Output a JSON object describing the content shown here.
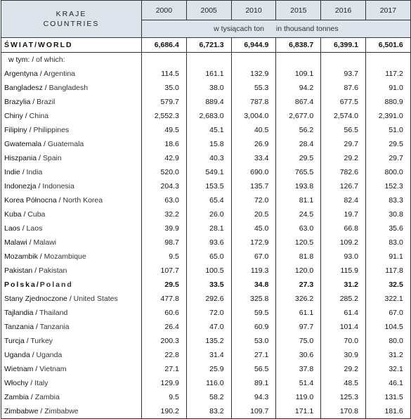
{
  "header": {
    "country_pl": "KRAJE",
    "country_en": "COUNTRIES",
    "years": [
      "2000",
      "2005",
      "2010",
      "2015",
      "2016",
      "2017"
    ],
    "unit_pl": "w tysiącach ton",
    "unit_en": "in thousand tonnes"
  },
  "world": {
    "pl": "ŚWIAT",
    "en": "WORLD",
    "values": [
      "6,686.4",
      "6,721.3",
      "6,944.9",
      "6,838.7",
      "6,399.1",
      "6,501.6"
    ]
  },
  "of_which": {
    "pl": "w tym:",
    "en": "of which:"
  },
  "rows": [
    {
      "pl": "Argentyna",
      "en": "Argentina",
      "values": [
        "114.5",
        "161.1",
        "132.9",
        "109.1",
        "93.7",
        "117.2"
      ]
    },
    {
      "pl": "Bangladesz",
      "en": "Bangladesh",
      "values": [
        "35.0",
        "38.0",
        "55.3",
        "94.2",
        "87.6",
        "91.0"
      ]
    },
    {
      "pl": "Brazylia",
      "en": "Brazil",
      "values": [
        "579.7",
        "889.4",
        "787.8",
        "867.4",
        "677.5",
        "880.9"
      ]
    },
    {
      "pl": "Chiny",
      "en": "China",
      "values": [
        "2,552.3",
        "2,683.0",
        "3,004.0",
        "2,677.0",
        "2,574.0",
        "2,391.0"
      ]
    },
    {
      "pl": "Filipiny",
      "en": "Philippines",
      "values": [
        "49.5",
        "45.1",
        "40.5",
        "56.2",
        "56.5",
        "51.0"
      ]
    },
    {
      "pl": "Gwatemala",
      "en": "Guatemala",
      "values": [
        "18.6",
        "15.8",
        "26.9",
        "28.4",
        "29.7",
        "29.5"
      ]
    },
    {
      "pl": "Hiszpania",
      "en": "Spain",
      "values": [
        "42.9",
        "40.3",
        "33.4",
        "29.5",
        "29.2",
        "29.7"
      ]
    },
    {
      "pl": "Indie",
      "en": "India",
      "values": [
        "520.0",
        "549.1",
        "690.0",
        "765.5",
        "782.6",
        "800.0"
      ]
    },
    {
      "pl": "Indonezja",
      "en": "Indonesia",
      "values": [
        "204.3",
        "153.5",
        "135.7",
        "193.8",
        "126.7",
        "152.3"
      ]
    },
    {
      "pl": "Korea Północna",
      "en": "North Korea",
      "values": [
        "63.0",
        "65.4",
        "72.0",
        "81.1",
        "82.4",
        "83.3"
      ]
    },
    {
      "pl": "Kuba",
      "en": "Cuba",
      "values": [
        "32.2",
        "26.0",
        "20.5",
        "24.5",
        "19.7",
        "30.8"
      ]
    },
    {
      "pl": "Laos",
      "en": "Laos",
      "values": [
        "39.9",
        "28.1",
        "45.0",
        "63.0",
        "66.8",
        "35.6"
      ]
    },
    {
      "pl": "Malawi",
      "en": "Malawi",
      "values": [
        "98.7",
        "93.6",
        "172.9",
        "120.5",
        "109.2",
        "83.0"
      ]
    },
    {
      "pl": "Mozambik",
      "en": "Mozambique",
      "values": [
        "9.5",
        "65.0",
        "67.0",
        "81.8",
        "93.0",
        "91.1"
      ]
    },
    {
      "pl": "Pakistan",
      "en": "Pakistan",
      "values": [
        "107.7",
        "100.5",
        "119.3",
        "120.0",
        "115.9",
        "117.8"
      ]
    },
    {
      "pl": "Polska",
      "en": "Poland",
      "bold": true,
      "values": [
        "29.5",
        "33.5",
        "34.8",
        "27.3",
        "31.2",
        "32.5"
      ]
    },
    {
      "pl": "Stany Zjednoczone",
      "en": "United States",
      "values": [
        "477.8",
        "292.6",
        "325.8",
        "326.2",
        "285.2",
        "322.1"
      ]
    },
    {
      "pl": "Tajlandia",
      "en": "Thailand",
      "values": [
        "60.6",
        "72.0",
        "59.5",
        "61.1",
        "61.4",
        "67.0"
      ]
    },
    {
      "pl": "Tanzania",
      "en": "Tanzania",
      "values": [
        "26.4",
        "47.0",
        "60.9",
        "97.7",
        "101.4",
        "104.5"
      ]
    },
    {
      "pl": "Turcja",
      "en": "Turkey",
      "values": [
        "200.3",
        "135.2",
        "53.0",
        "75.0",
        "70.0",
        "80.0"
      ]
    },
    {
      "pl": "Uganda",
      "en": "Uganda",
      "values": [
        "22.8",
        "31.4",
        "27.1",
        "30.6",
        "30.9",
        "31.2"
      ]
    },
    {
      "pl": "Wietnam",
      "en": "Vietnam",
      "values": [
        "27.1",
        "25.9",
        "56.5",
        "37.8",
        "29.2",
        "32.1"
      ]
    },
    {
      "pl": "Włochy",
      "en": "Italy",
      "values": [
        "129.9",
        "116.0",
        "89.1",
        "51.4",
        "48.5",
        "46.1"
      ]
    },
    {
      "pl": "Zambia",
      "en": "Zambia",
      "values": [
        "9.5",
        "58.2",
        "94.3",
        "119.0",
        "125.3",
        "131.5"
      ]
    },
    {
      "pl": "Zimbabwe",
      "en": "Zimbabwe",
      "values": [
        "190.2",
        "83.2",
        "109.7",
        "171.1",
        "170.8",
        "181.6"
      ]
    }
  ]
}
